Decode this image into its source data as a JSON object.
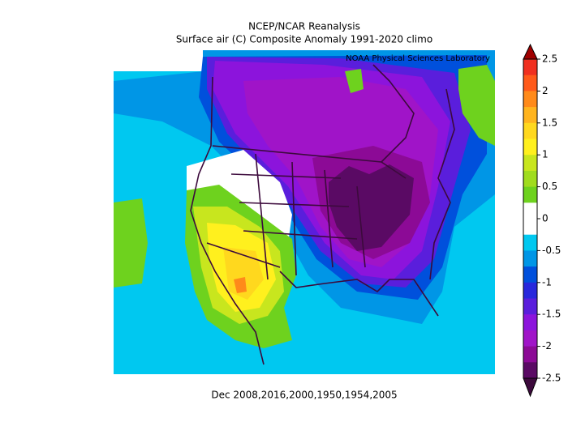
{
  "title": [
    "NCEP/NCAR Reanalysis",
    "Surface air (C) Composite Anomaly 1991-2020 climo"
  ],
  "credit": "NOAA Physical Sciences Laboratory",
  "caption": "Dec 2008,2016,2000,1950,1954,2005",
  "colorbar": {
    "ticks": [
      2.5,
      2,
      1.5,
      1,
      0.5,
      0,
      -0.5,
      -1,
      -1.5,
      -2,
      -2.5
    ],
    "colors": [
      "#f03020",
      "#ff5a1a",
      "#ff8a1a",
      "#ffb41e",
      "#ffd81e",
      "#fff01e",
      "#c8e61e",
      "#a0dc1e",
      "#6ed21e",
      "#ffffff",
      "#ffffff",
      "#00c8f0",
      "#0096e6",
      "#0050dc",
      "#2828dc",
      "#5a1edc",
      "#8c14dc",
      "#a014c8",
      "#8c0a96",
      "#5a0a64"
    ],
    "over_color": "#a00000",
    "under_color": "#3c0a3c"
  }
}
